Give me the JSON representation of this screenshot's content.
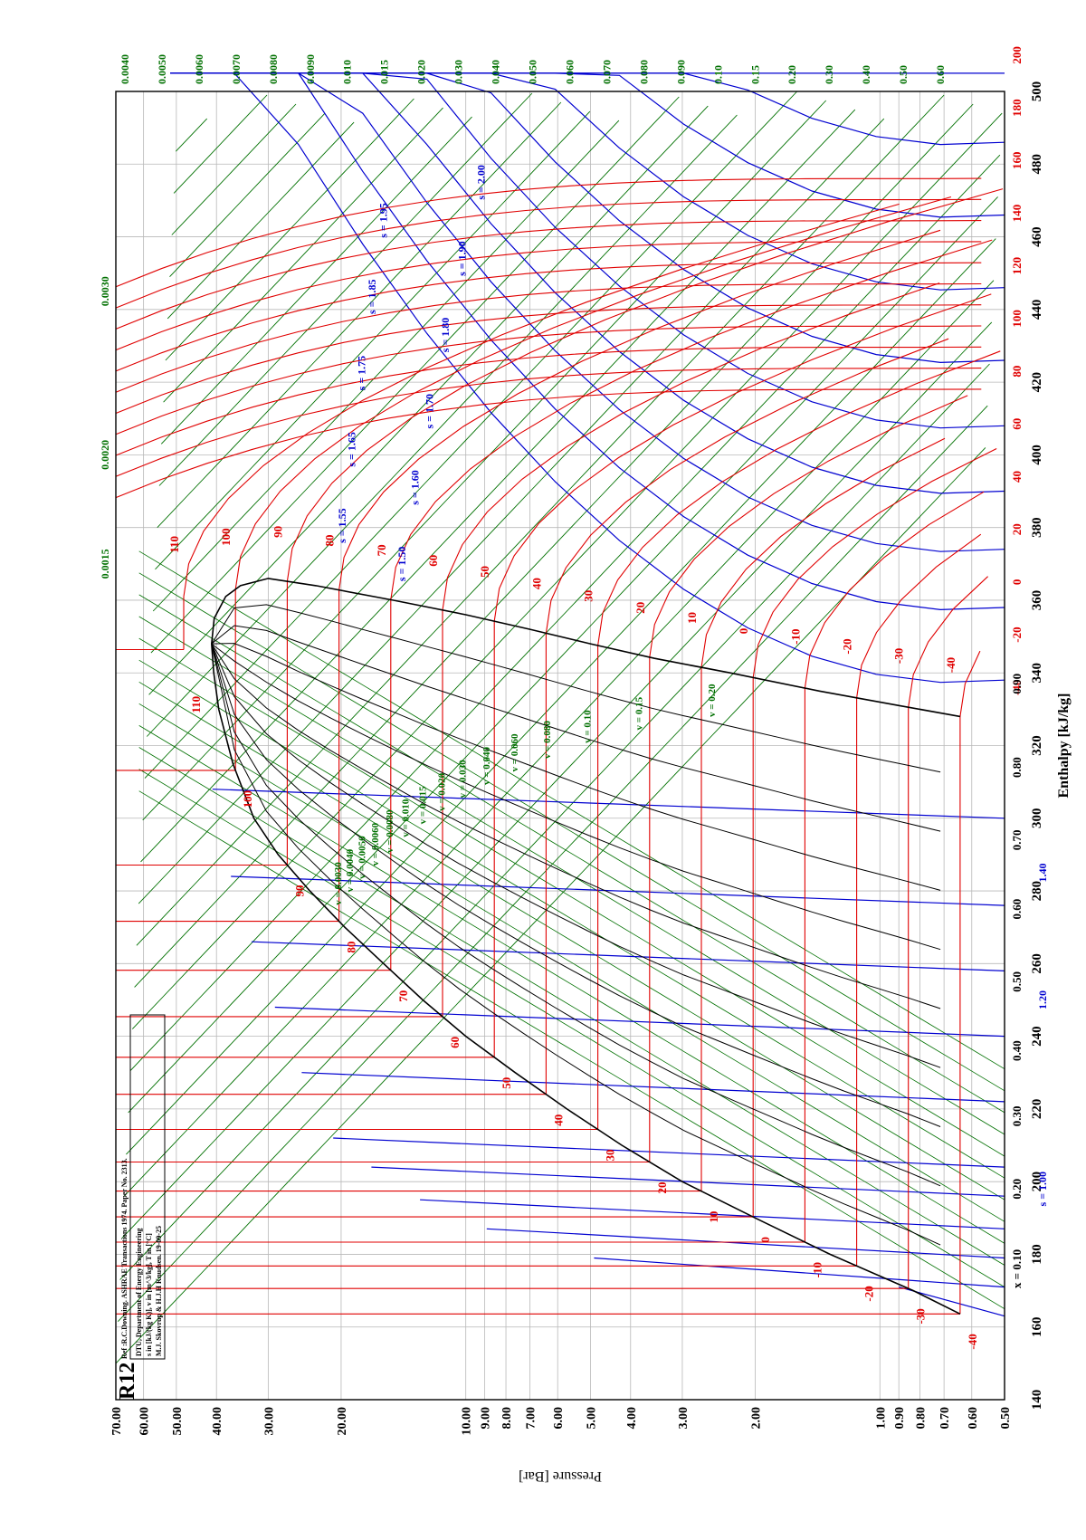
{
  "chart_data": {
    "type": "line",
    "orientation": "rotated-90-ccw",
    "title": "R12",
    "subtitle": "Ref :R.C.Downing. ASHRAE Transactions 1974. Paper No. 2313.",
    "info_box": [
      "DTU, Department of Energy Engineering",
      "s in [kJ/(kg K)], v in [m^3/kg], T in [°C]",
      "M.J. Skovrup & H.J.H Knudsen. 19-09-25"
    ],
    "xlabel": "Enthalpy [kJ/kg]",
    "ylabel": "Pressure [Bar]",
    "xlim": [
      140,
      500
    ],
    "ylim": [
      0.5,
      70
    ],
    "yscale": "log",
    "grid": true,
    "x_ticks": [
      "140",
      "160",
      "180",
      "200",
      "220",
      "240",
      "260",
      "280",
      "300",
      "320",
      "340",
      "360",
      "380",
      "400",
      "420",
      "440",
      "460",
      "480",
      "500"
    ],
    "y_ticks": [
      "0.50",
      "0.60",
      "0.70",
      "0.80",
      "0.90",
      "1.00",
      "2.00",
      "3.00",
      "4.00",
      "5.00",
      "6.00",
      "7.00",
      "8.00",
      "9.00",
      "10.00",
      "20.00",
      "30.00",
      "40.00",
      "50.00",
      "60.00",
      "70.00"
    ],
    "critical_point": {
      "h": 348,
      "p": 41.1
    },
    "saturated_liquid": [
      [
        163.6,
        0.64
      ],
      [
        170,
        0.83
      ],
      [
        180,
        1.32
      ],
      [
        190,
        2.0
      ],
      [
        200,
        3.0
      ],
      [
        210,
        4.2
      ],
      [
        220,
        5.7
      ],
      [
        230,
        7.6
      ],
      [
        240,
        10.0
      ],
      [
        250,
        12.7
      ],
      [
        260,
        15.8
      ],
      [
        270,
        19.6
      ],
      [
        280,
        23.8
      ],
      [
        290,
        28.4
      ],
      [
        300,
        32.5
      ],
      [
        315,
        36.5
      ],
      [
        330,
        39.5
      ],
      [
        340,
        40.6
      ],
      [
        348,
        41.1
      ]
    ],
    "saturated_vapor": [
      [
        348,
        41.1
      ],
      [
        355,
        40.5
      ],
      [
        361,
        38.0
      ],
      [
        364,
        35.0
      ],
      [
        366,
        30.0
      ],
      [
        364,
        23.0
      ],
      [
        360,
        15.0
      ],
      [
        356,
        10.0
      ],
      [
        352,
        7.0
      ],
      [
        348,
        5.0
      ],
      [
        344,
        3.5
      ],
      [
        340,
        2.3
      ],
      [
        335,
        1.4
      ],
      [
        331,
        0.9
      ],
      [
        328,
        0.64
      ]
    ],
    "isotherms_liquid_tick_labels": [
      "-40",
      "-30",
      "-20",
      "-10",
      "0",
      "10",
      "20",
      "30",
      "40",
      "50",
      "60",
      "70",
      "80",
      "90",
      "100",
      "110"
    ],
    "isotherms_vapor_labels": [
      "-40",
      "-30",
      "-20",
      "-10",
      "0",
      "10",
      "20",
      "30",
      "40",
      "50",
      "60",
      "70",
      "80",
      "90",
      "100",
      "110"
    ],
    "temperature_right_labels": [
      "-40",
      "-20",
      "0",
      "20",
      "40",
      "60",
      "80",
      "100",
      "120",
      "140",
      "160",
      "180",
      "200"
    ],
    "quality_labels": [
      "x = 0.10",
      "0.20",
      "0.30",
      "0.40",
      "0.50",
      "0.60",
      "0.70",
      "0.80",
      "0.90"
    ],
    "entropy_bottom_labels": [
      "s = 1.00",
      "1.20",
      "1.40"
    ],
    "entropy_vapor_labels": [
      "s = 1.50",
      "s = 1.55",
      "s = 1.60",
      "s = 1.65",
      "s = 1.70",
      "s = 1.75",
      "s = 1.80",
      "s = 1.85",
      "s = 1.90",
      "s = 1.95",
      "s = 2.00"
    ],
    "specific_volume_top_labels": [
      "0.0040",
      "0.0050",
      "0.0060",
      "0.0070",
      "0.0080",
      "0.0090",
      "0.010",
      "0.015",
      "0.020",
      "0.030",
      "0.040",
      "0.050",
      "0.060",
      "0.070",
      "0.080",
      "0.090",
      "0.10",
      "0.15",
      "0.20",
      "0.30",
      "0.40",
      "0.50",
      "0.60"
    ],
    "specific_volume_left_labels": [
      "0.0015",
      "0.0020",
      "0.0030"
    ],
    "specific_volume_inner_labels": [
      "v = 0.0030",
      "v = 0.0040",
      "v = 0.0050",
      "v = 0.0060",
      "v = 0.0080",
      "v = 0.010",
      "v = 0.015",
      "v = 0.020",
      "v = 0.030",
      "v = 0.040",
      "v = 0.060",
      "v = 0.080",
      "v = 0.10",
      "v = 0.15",
      "v = 0.20"
    ],
    "colors": {
      "temperature": "#e00000",
      "entropy": "#0000d0",
      "volume": "#007000",
      "quality": "#000000",
      "grid": "#b8b8b8"
    }
  }
}
